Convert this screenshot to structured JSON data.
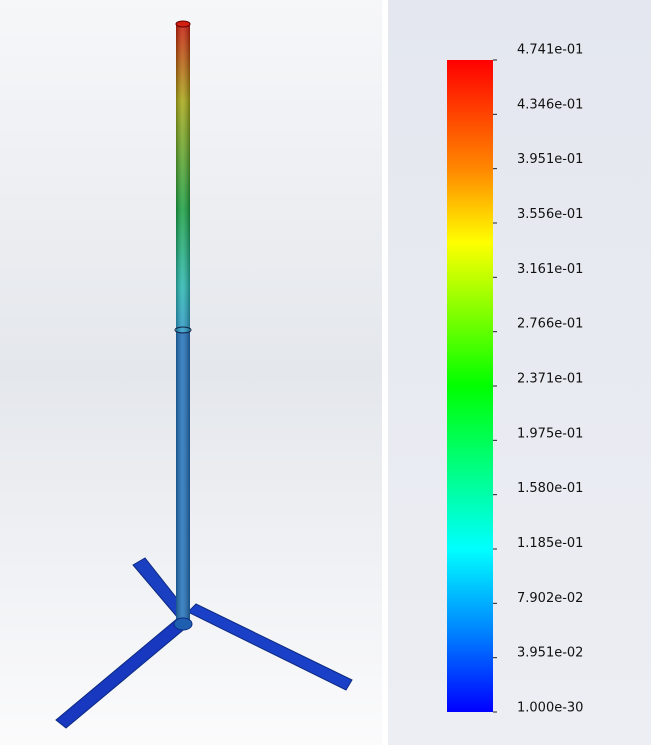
{
  "legend": {
    "labels": [
      "4.741e-01",
      "4.346e-01",
      "3.951e-01",
      "3.556e-01",
      "3.161e-01",
      "2.766e-01",
      "2.371e-01",
      "1.975e-01",
      "1.580e-01",
      "1.185e-01",
      "7.902e-02",
      "3.951e-02",
      "1.000e-30"
    ]
  }
}
